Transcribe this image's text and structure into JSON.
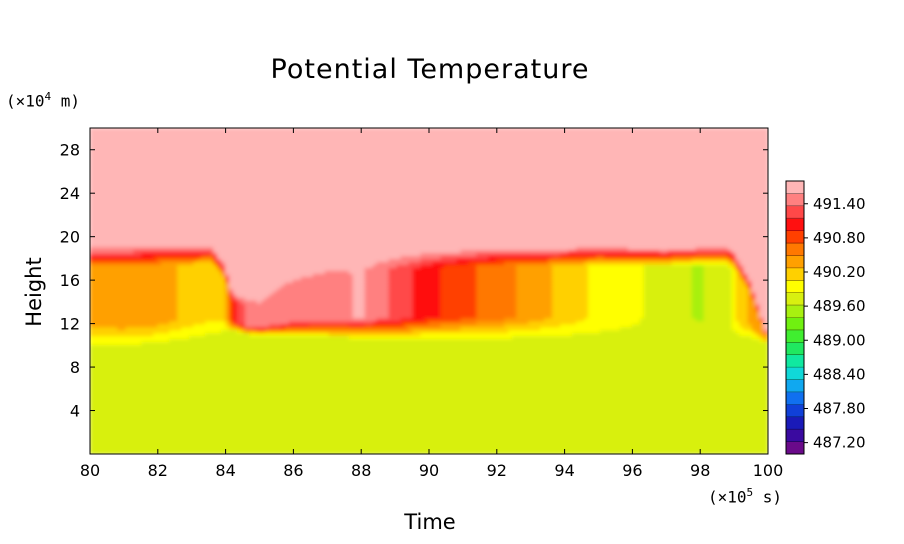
{
  "chart_data": {
    "type": "heatmap",
    "title": "Potential Temperature",
    "xlabel": "Time",
    "ylabel": "Height",
    "x_unit": {
      "prefix": "(×10",
      "exp": "5",
      "suffix": " s)"
    },
    "y_unit": {
      "prefix": "(×10",
      "exp": "4",
      "suffix": " m)"
    },
    "xlim": [
      80,
      100
    ],
    "ylim": [
      0,
      30
    ],
    "x_ticks": [
      "80",
      "82",
      "84",
      "86",
      "88",
      "90",
      "92",
      "94",
      "96",
      "98",
      "100"
    ],
    "y_ticks": [
      "4",
      "8",
      "12",
      "16",
      "20",
      "24",
      "28"
    ],
    "colorbar": {
      "range": [
        487.0,
        491.8
      ],
      "labels": [
        "491.40",
        "490.80",
        "490.20",
        "489.60",
        "489.00",
        "488.40",
        "487.80",
        "487.20"
      ],
      "colors": [
        "#6a0a8a",
        "#3a0aa0",
        "#1a1ab8",
        "#1040d8",
        "#1070f0",
        "#10a8f0",
        "#10d8d8",
        "#10e8a0",
        "#20e860",
        "#40ee30",
        "#70f010",
        "#a8f010",
        "#d8f010",
        "#ffff00",
        "#ffd000",
        "#ffa000",
        "#ff7800",
        "#ff4000",
        "#ff1010",
        "#ff4848",
        "#ff8080",
        "#ffb6b6"
      ]
    },
    "profile": {
      "x": [
        80,
        81,
        82,
        83,
        83.6,
        84,
        84.2,
        84.6,
        85,
        85.6,
        86,
        87,
        88,
        89,
        90,
        91,
        92,
        93,
        94,
        95,
        96,
        97,
        98,
        98.8,
        99,
        99.5,
        100
      ],
      "top": [
        19.2,
        19.2,
        19.3,
        19.3,
        19.3,
        17.5,
        15,
        14.6,
        14.5,
        16.0,
        16.8,
        17.8,
        18.3,
        18.6,
        18.9,
        19.0,
        19.1,
        19.1,
        19.1,
        19.2,
        19.1,
        19.0,
        19.1,
        19.2,
        18.8,
        16.0,
        10.8
      ],
      "bottom": [
        9.4,
        9.6,
        9.9,
        10.2,
        10.4,
        11.0,
        11.3,
        11.0,
        10.9,
        10.8,
        10.8,
        10.7,
        10.6,
        10.5,
        10.5,
        10.5,
        10.4,
        10.4,
        10.4,
        10.3,
        10.3,
        10.3,
        10.3,
        10.3,
        10.4,
        10.5,
        10.3
      ],
      "warm_core": [
        490.3,
        490.4,
        490.4,
        490.2,
        490.1,
        490.2,
        490.9,
        491.4,
        491.5,
        491.5,
        491.5,
        491.5,
        491.6,
        491.3,
        491.0,
        490.8,
        490.6,
        490.4,
        490.2,
        490.0,
        489.9,
        489.7,
        489.6,
        489.7,
        490.0,
        490.3,
        490.5
      ],
      "lower_value": 489.7,
      "upper_value": 491.75
    }
  }
}
